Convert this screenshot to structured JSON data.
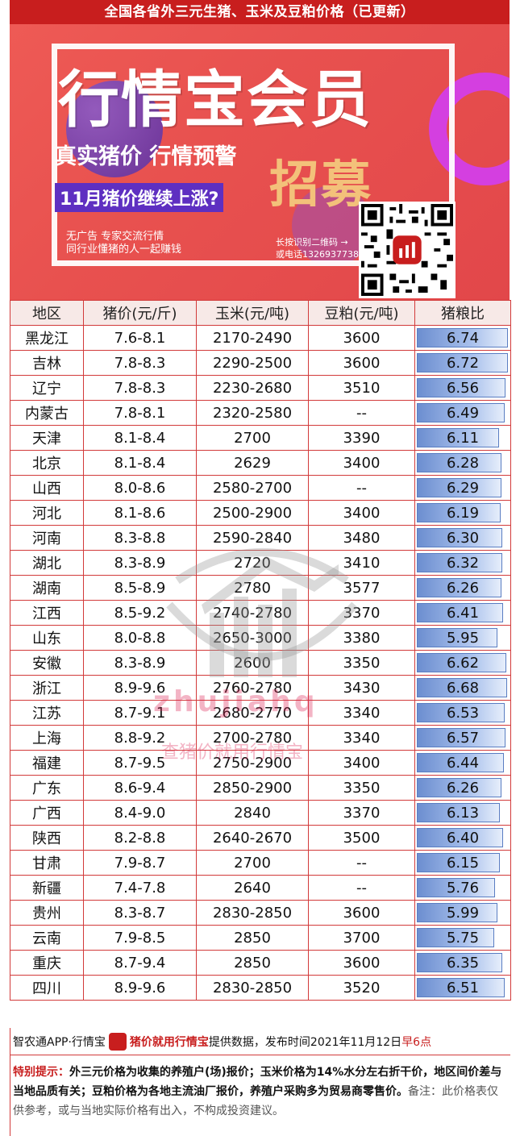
{
  "title": "全国各省外三元生猪、玉米及豆粕价格（已更新）",
  "banner": {
    "big_title": "行情宝会员",
    "sub1": "真实猪价 行情预警",
    "recruit": "招募",
    "sub2": "11月猪价继续上涨?",
    "note1": "无广告 专家交流行情",
    "note2": "同行业懂猪的人一起赚钱",
    "scan1": "长按识别二维码 →",
    "scan2": "或电话13269377381"
  },
  "table": {
    "headers": [
      "地区",
      "猪价(元/斤)",
      "玉米(元/吨)",
      "豆粕(元/吨)",
      "猪粮比"
    ],
    "ratio_max": 6.8,
    "rows": [
      {
        "region": "黑龙江",
        "pig": "7.6-8.1",
        "corn": "2170-2490",
        "soy": "3600",
        "ratio": "6.74"
      },
      {
        "region": "吉林",
        "pig": "7.8-8.3",
        "corn": "2290-2500",
        "soy": "3600",
        "ratio": "6.72"
      },
      {
        "region": "辽宁",
        "pig": "7.8-8.3",
        "corn": "2230-2680",
        "soy": "3510",
        "ratio": "6.56"
      },
      {
        "region": "内蒙古",
        "pig": "7.8-8.1",
        "corn": "2320-2580",
        "soy": "--",
        "ratio": "6.49"
      },
      {
        "region": "天津",
        "pig": "8.1-8.4",
        "corn": "2700",
        "soy": "3390",
        "ratio": "6.11"
      },
      {
        "region": "北京",
        "pig": "8.1-8.4",
        "corn": "2629",
        "soy": "3400",
        "ratio": "6.28"
      },
      {
        "region": "山西",
        "pig": "8.0-8.6",
        "corn": "2580-2700",
        "soy": "--",
        "ratio": "6.29"
      },
      {
        "region": "河北",
        "pig": "8.1-8.6",
        "corn": "2500-2900",
        "soy": "3400",
        "ratio": "6.19"
      },
      {
        "region": "河南",
        "pig": "8.3-8.8",
        "corn": "2590-2840",
        "soy": "3480",
        "ratio": "6.30"
      },
      {
        "region": "湖北",
        "pig": "8.3-8.9",
        "corn": "2720",
        "soy": "3410",
        "ratio": "6.32"
      },
      {
        "region": "湖南",
        "pig": "8.5-8.9",
        "corn": "2780",
        "soy": "3577",
        "ratio": "6.26"
      },
      {
        "region": "江西",
        "pig": "8.5-9.2",
        "corn": "2740-2780",
        "soy": "3370",
        "ratio": "6.41"
      },
      {
        "region": "山东",
        "pig": "8.0-8.8",
        "corn": "2650-3000",
        "soy": "3380",
        "ratio": "5.95"
      },
      {
        "region": "安徽",
        "pig": "8.3-8.9",
        "corn": "2600",
        "soy": "3350",
        "ratio": "6.62"
      },
      {
        "region": "浙江",
        "pig": "8.9-9.6",
        "corn": "2760-2780",
        "soy": "3430",
        "ratio": "6.68"
      },
      {
        "region": "江苏",
        "pig": "8.7-9.1",
        "corn": "2680-2770",
        "soy": "3340",
        "ratio": "6.53"
      },
      {
        "region": "上海",
        "pig": "8.8-9.2",
        "corn": "2700-2780",
        "soy": "3340",
        "ratio": "6.57"
      },
      {
        "region": "福建",
        "pig": "8.7-9.5",
        "corn": "2750-2900",
        "soy": "3400",
        "ratio": "6.44"
      },
      {
        "region": "广东",
        "pig": "8.6-9.4",
        "corn": "2850-2900",
        "soy": "3350",
        "ratio": "6.26"
      },
      {
        "region": "广西",
        "pig": "8.4-9.0",
        "corn": "2840",
        "soy": "3370",
        "ratio": "6.13"
      },
      {
        "region": "陕西",
        "pig": "8.2-8.8",
        "corn": "2640-2670",
        "soy": "3500",
        "ratio": "6.40"
      },
      {
        "region": "甘肃",
        "pig": "7.9-8.7",
        "corn": "2700",
        "soy": "--",
        "ratio": "6.15"
      },
      {
        "region": "新疆",
        "pig": "7.4-7.8",
        "corn": "2640",
        "soy": "--",
        "ratio": "5.76"
      },
      {
        "region": "贵州",
        "pig": "8.3-8.7",
        "corn": "2830-2850",
        "soy": "3600",
        "ratio": "5.99"
      },
      {
        "region": "云南",
        "pig": "7.9-8.5",
        "corn": "2850",
        "soy": "3700",
        "ratio": "5.75"
      },
      {
        "region": "重庆",
        "pig": "8.7-9.4",
        "corn": "2850",
        "soy": "3600",
        "ratio": "6.35"
      },
      {
        "region": "四川",
        "pig": "8.9-9.6",
        "corn": "2830-2850",
        "soy": "3520",
        "ratio": "6.51"
      }
    ]
  },
  "watermark": {
    "text": "zhujiahq",
    "slogan": "查猪价就用行情宝"
  },
  "footer": {
    "source_prefix": "智农通APP·行情宝",
    "brand": "猪价就用行情宝",
    "source_mid": "提供数据，发布时间2021年11月12日",
    "time": "早6点",
    "tip_label": "特别提示：",
    "tip_text": "外三元价格为收集的养殖户(场)报价；玉米价格为14%水分左右折干价，地区间价差与当地品质有关；豆粕价格为各地主流油厂报价，养殖户采购多为贸易商零售价。",
    "disclaimer": "备注：此价格表仅供参考，或与当地实际价格有出入，不构成投资建议。"
  },
  "colors": {
    "accent": "#c81e1e",
    "bar": "#6c8ed0"
  }
}
